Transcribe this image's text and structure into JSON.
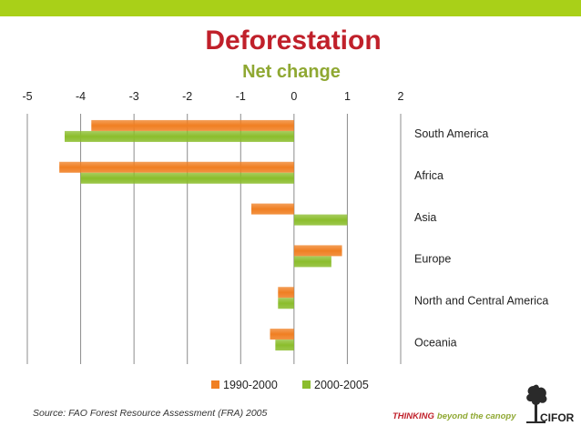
{
  "header": {
    "title": "Deforestation",
    "subtitle": "Net change"
  },
  "chart_data": {
    "type": "bar",
    "orientation": "horizontal",
    "title": "Deforestation",
    "subtitle": "Net change",
    "xlim": [
      -5,
      2
    ],
    "x_ticks": [
      "-5",
      "-4",
      "-3",
      "-2",
      "-1",
      "0",
      "1",
      "2"
    ],
    "categories": [
      "South America",
      "Africa",
      "Asia",
      "Europe",
      "North and Central America",
      "Oceania"
    ],
    "series": [
      {
        "name": "1990-2000",
        "color": "#f07f22",
        "values": [
          -3.8,
          -4.4,
          -0.8,
          0.9,
          -0.3,
          -0.45
        ]
      },
      {
        "name": "2000-2005",
        "color": "#8bbd2c",
        "values": [
          -4.3,
          -4.0,
          1.0,
          0.7,
          -0.3,
          -0.35
        ]
      }
    ],
    "legend_position": "bottom"
  },
  "footer": {
    "source": "Source: FAO Forest Resource Assessment (FRA) 2005",
    "tagline_thinking": "THINKING",
    "tagline_rest": "beyond the canopy",
    "logo_text": "CIFOR"
  }
}
